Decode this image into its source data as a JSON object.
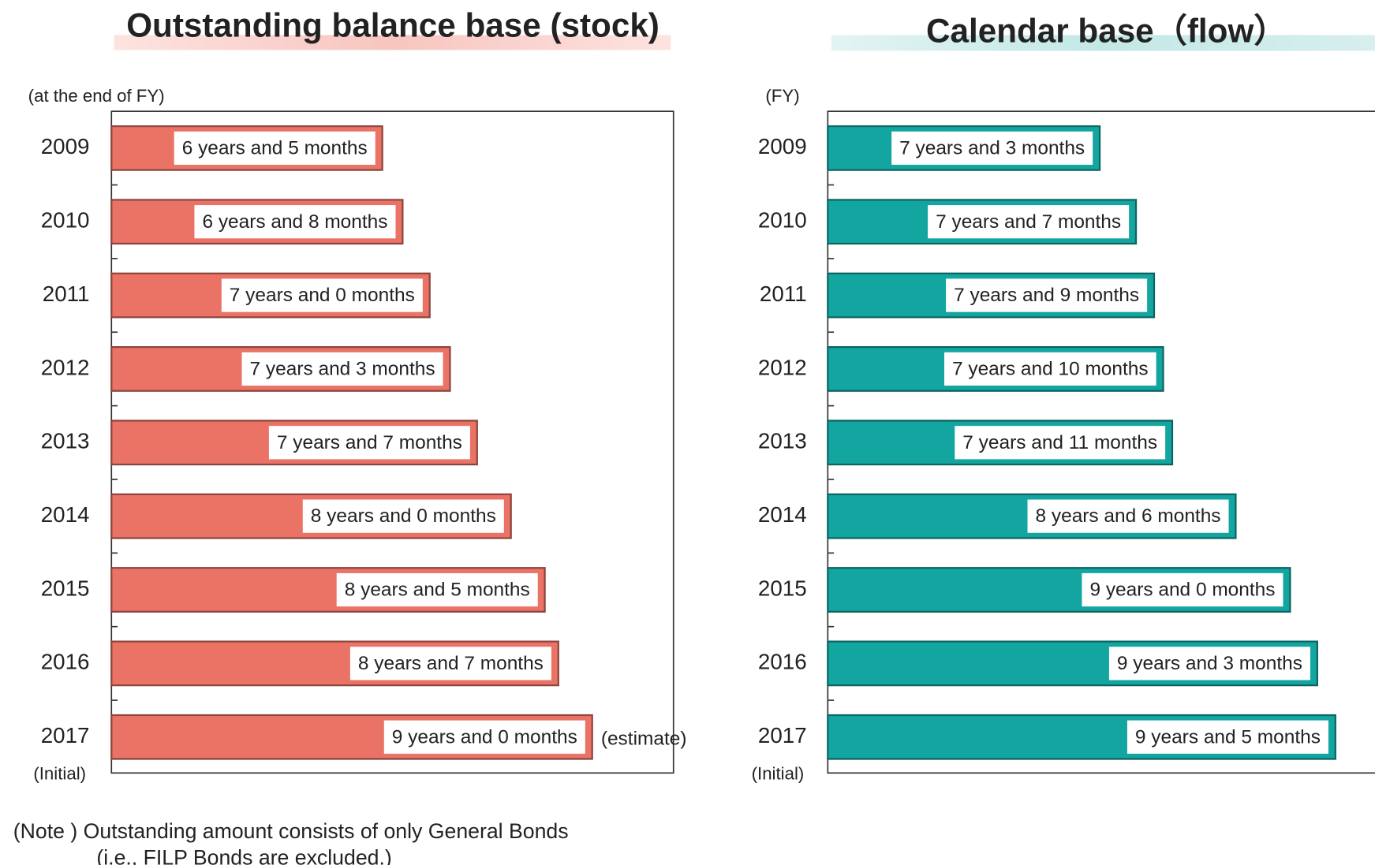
{
  "chart_data": [
    {
      "type": "bar",
      "orientation": "horizontal",
      "title": "Outstanding balance base (stock)",
      "axis_label": "(at the end of FY)",
      "category_note": "(Initial)",
      "annotation": "(estimate)",
      "categories": [
        "2009",
        "2010",
        "2011",
        "2012",
        "2013",
        "2014",
        "2015",
        "2016",
        "2017"
      ],
      "values": [
        77,
        80,
        84,
        87,
        91,
        96,
        101,
        103,
        108
      ],
      "value_labels": [
        "6 years and 5 months",
        "6 years and 8 months",
        "7 years and 0 months",
        "7 years and 3 months",
        "7 years and 7 months",
        "8 years and 0 months",
        "8 years and 5 months",
        "8 years and 7 months",
        "9 years and 0 months"
      ],
      "color": "#ea7366",
      "xlim": [
        37,
        120
      ]
    },
    {
      "type": "bar",
      "orientation": "horizontal",
      "title": "Calendar base（flow）",
      "axis_label": "(FY)",
      "category_note": "(Initial)",
      "categories": [
        "2009",
        "2010",
        "2011",
        "2012",
        "2013",
        "2014",
        "2015",
        "2016",
        "2017"
      ],
      "values": [
        87,
        91,
        93,
        94,
        95,
        102,
        108,
        111,
        113
      ],
      "value_labels": [
        "7 years and 3 months",
        "7 years and 7 months",
        "7 years and 9 months",
        "7 years and 10 months",
        "7 years and 11 months",
        "8 years and 6 months",
        "9 years and 0 months",
        "9 years and 3 months",
        "9 years and 5 months"
      ],
      "color": "#13a6a1",
      "xlim": [
        57,
        119
      ]
    }
  ],
  "note": [
    "(Note ) Outstanding amount consists of only General Bonds",
    "(i.e., FILP Bonds are excluded.)"
  ]
}
